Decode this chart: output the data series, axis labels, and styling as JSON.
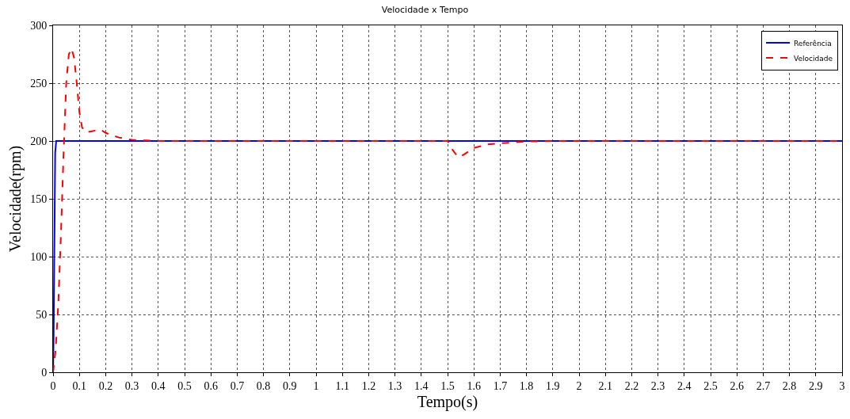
{
  "chart_data": {
    "type": "line",
    "title": "Velocidade x Tempo",
    "xlabel": "Tempo(s)",
    "ylabel": "Velocidade(rpm)",
    "xlim": [
      0,
      3
    ],
    "xticks": [
      0,
      0.1,
      0.2,
      0.3,
      0.4,
      0.5,
      0.6,
      0.7,
      0.8,
      0.9,
      1,
      1.1,
      1.2,
      1.3,
      1.4,
      1.5,
      1.6,
      1.7,
      1.8,
      1.9,
      2,
      2.1,
      2.2,
      2.3,
      2.4,
      2.5,
      2.6,
      2.7,
      2.8,
      2.9,
      3
    ],
    "ylim": [
      0,
      300
    ],
    "yticks": [
      0,
      50,
      100,
      150,
      200,
      250,
      300
    ],
    "grid": true,
    "legend": "top right",
    "marker": "none",
    "series": [
      {
        "name": "Referência",
        "color": "#0000ff",
        "line_style": "solid",
        "x": [
          0,
          0.002,
          0.004,
          0.006,
          0.008,
          0.01,
          0.012,
          3
        ],
        "values": [
          0,
          30,
          85,
          135,
          190,
          195,
          200,
          200
        ]
      },
      {
        "name": "Velocidade",
        "color": "#ff0000",
        "line_style": "dashed",
        "x": [
          0,
          0.01,
          0.02,
          0.03,
          0.04,
          0.05,
          0.06,
          0.07,
          0.08,
          0.09,
          0.1,
          0.11,
          0.12,
          0.14,
          0.16,
          0.18,
          0.2,
          0.25,
          0.3,
          0.35,
          0.4,
          1.5,
          1.52,
          1.54,
          1.56,
          1.6,
          1.65,
          1.7,
          1.8,
          1.9,
          3
        ],
        "values": [
          0,
          20,
          60,
          120,
          190,
          250,
          275,
          280,
          272,
          250,
          225,
          212,
          208,
          208,
          209,
          210,
          207,
          203,
          201,
          200.5,
          200,
          200,
          192,
          186,
          188,
          194,
          197,
          198,
          199.5,
          200,
          200
        ]
      }
    ]
  }
}
